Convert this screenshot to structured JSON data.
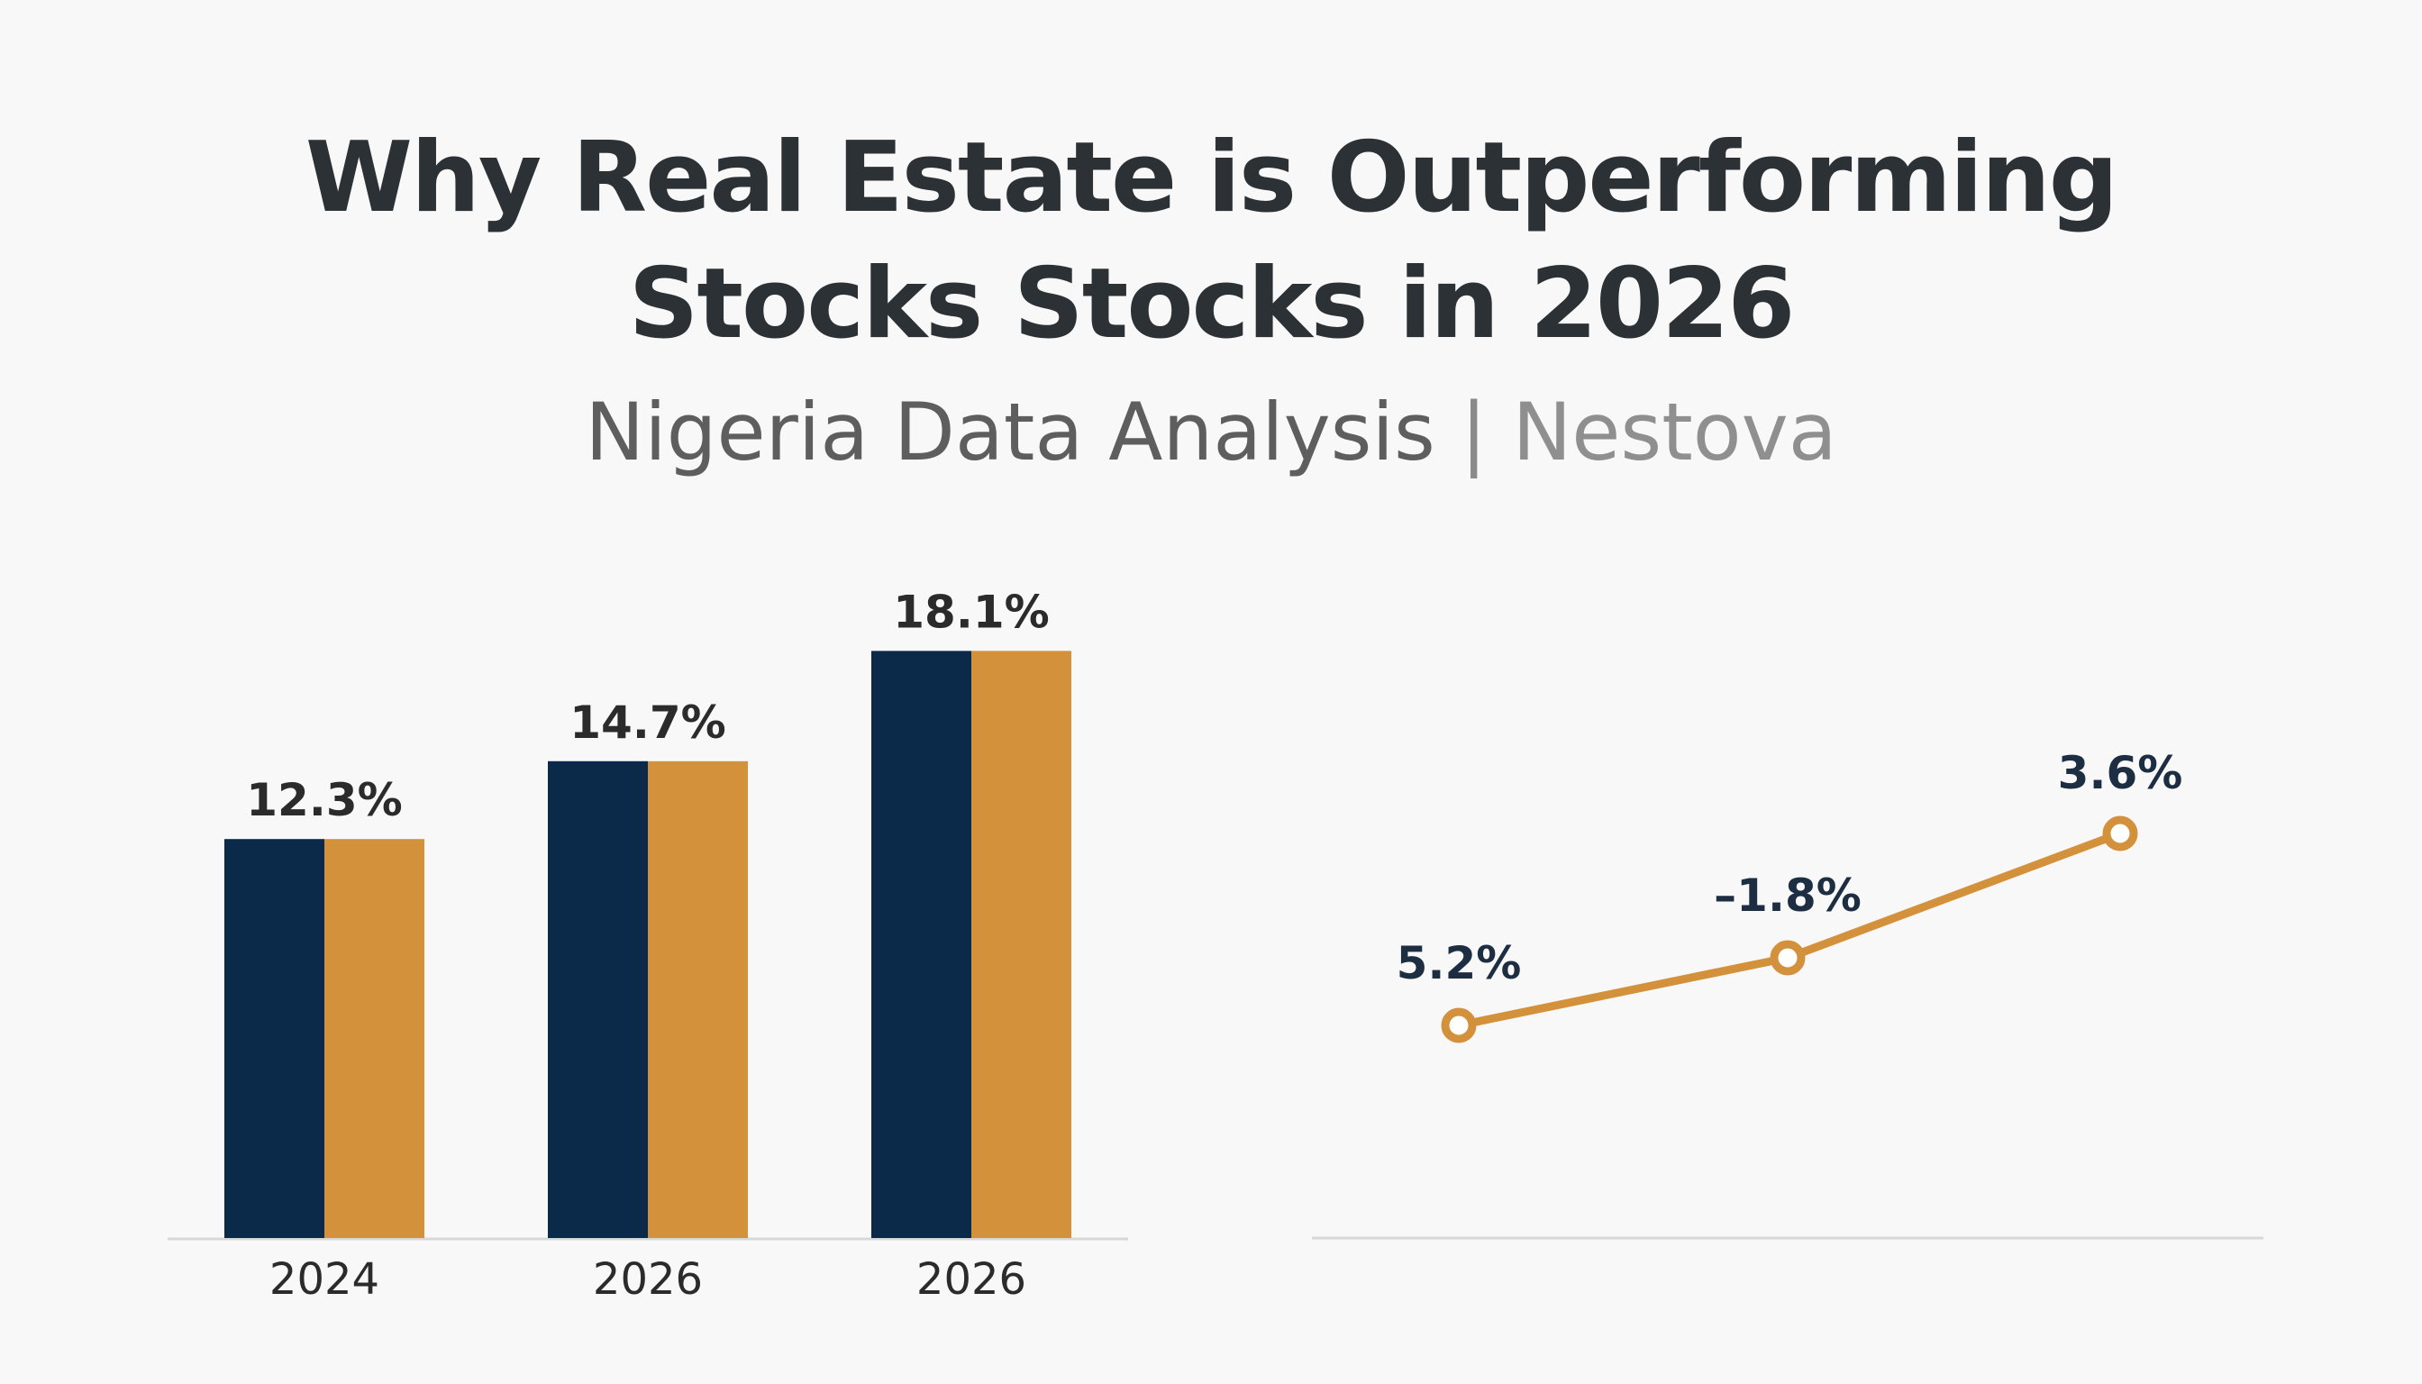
{
  "header": {
    "title_line1": "Why Real Estate is Outperforming",
    "title_line2": "Stocks Stocks in 2026",
    "subtitle_main": "Nigeria Data Analysis",
    "subtitle_separator": "|",
    "subtitle_brand": "Nestova"
  },
  "colors": {
    "navy": "#0b2a4a",
    "gold": "#d4913b",
    "axis": "#d8d8d8"
  },
  "chart_data": [
    {
      "type": "bar",
      "categories": [
        "2024",
        "2026",
        "2026"
      ],
      "series": [
        {
          "values": [
            12.3,
            14.7,
            18.1
          ]
        },
        {
          "values": [
            12.3,
            14.7,
            18.1
          ]
        }
      ],
      "data_labels": [
        "12.3%",
        "14.7%",
        "18.1%"
      ],
      "ylim": [
        0,
        21.5
      ]
    },
    {
      "type": "line",
      "values": [
        5.2,
        -1.8,
        3.6
      ],
      "data_labels": [
        "5.2%",
        "–1.8%",
        "3.6%"
      ]
    }
  ]
}
